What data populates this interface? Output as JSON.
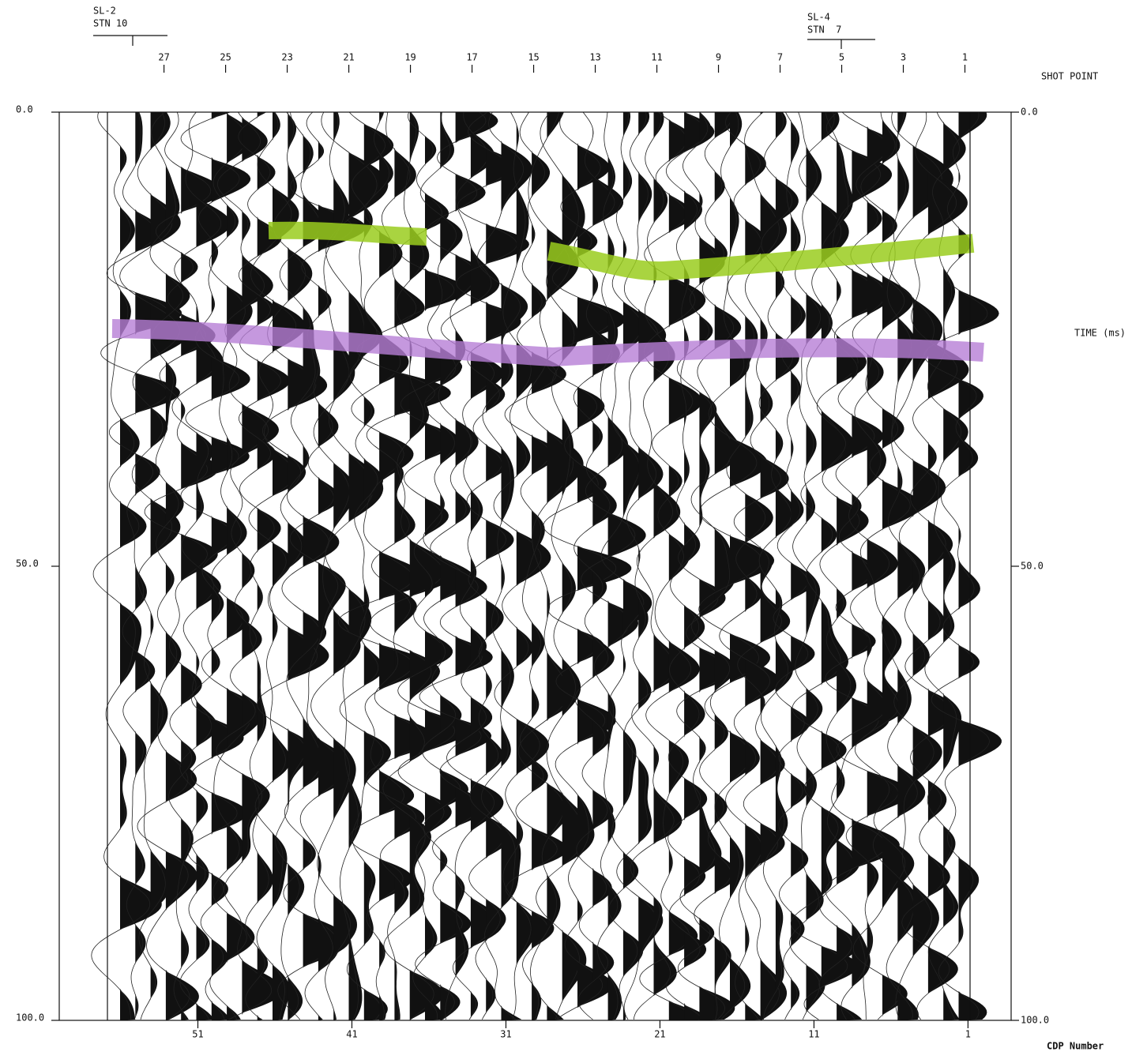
{
  "chart_data": {
    "type": "seismic",
    "ylabel": "TIME (ms)",
    "ylim": [
      0,
      100
    ],
    "yticks": [
      {
        "value": 0,
        "label": "0.0"
      },
      {
        "value": 50,
        "label": "50.0"
      },
      {
        "value": 100,
        "label": "100.0"
      }
    ],
    "top_axis": {
      "label": "SHOT POINT",
      "lim": [
        30.4,
        -0.5
      ],
      "ticks": [
        27,
        25,
        23,
        21,
        19,
        17,
        15,
        13,
        11,
        9,
        7,
        5,
        3,
        1
      ]
    },
    "bottom_axis": {
      "label": "CDP Number",
      "lim": [
        60,
        -1.8
      ],
      "ticks": [
        51,
        41,
        31,
        21,
        11,
        1
      ]
    },
    "annotations": [
      {
        "line1": "SL-2",
        "line2": "STN 10"
      },
      {
        "line1": "SL-4",
        "line2": "STN  7"
      }
    ]
  }
}
